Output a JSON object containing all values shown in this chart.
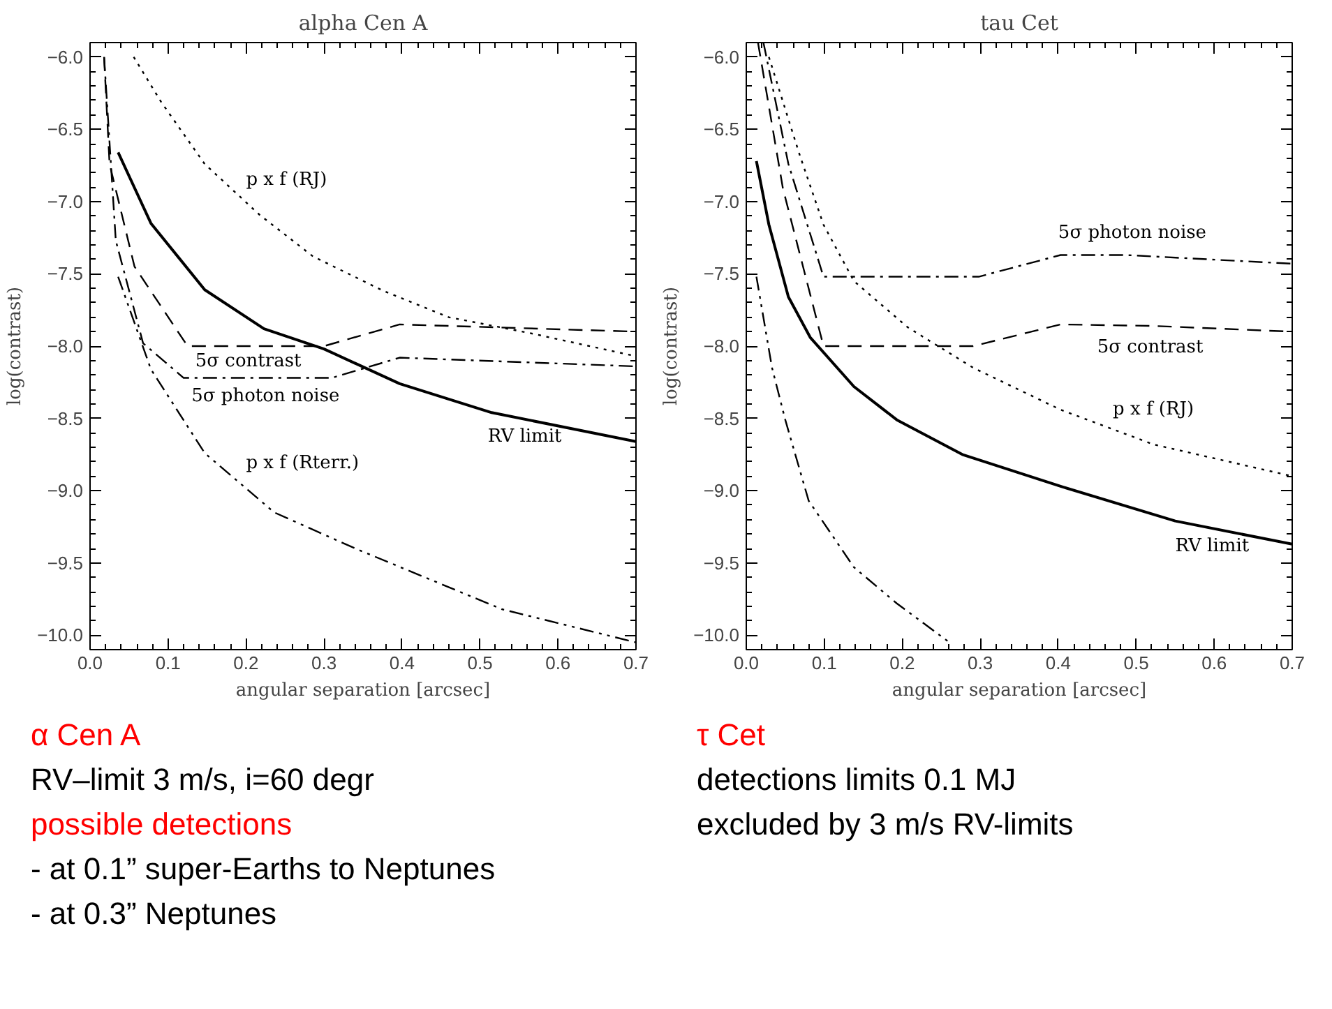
{
  "chart_data": [
    {
      "type": "line",
      "title": "alpha Cen A",
      "xlabel": "angular separation [arcsec]",
      "ylabel": "log(contrast)",
      "xlim": [
        0,
        0.7
      ],
      "ylim": [
        -10.1,
        -5.9
      ],
      "xticks": [
        {
          "value": 0,
          "label": "0.0"
        },
        {
          "value": 0.1,
          "label": "0.1"
        },
        {
          "value": 0.2,
          "label": "0.2"
        },
        {
          "value": 0.3,
          "label": "0.3"
        },
        {
          "value": 0.4,
          "label": "0.4"
        },
        {
          "value": 0.5,
          "label": "0.5"
        },
        {
          "value": 0.6,
          "label": "0.6"
        },
        {
          "value": 0.7,
          "label": "0.7"
        }
      ],
      "yticks": [
        {
          "value": -6,
          "label": "−6.0"
        },
        {
          "value": -6.5,
          "label": "−6.5"
        },
        {
          "value": -7,
          "label": "−7.0"
        },
        {
          "value": -7.5,
          "label": "−7.5"
        },
        {
          "value": -8,
          "label": "−8.0"
        },
        {
          "value": -8.5,
          "label": "−8.5"
        },
        {
          "value": -9,
          "label": "−9.0"
        },
        {
          "value": -9.5,
          "label": "−9.5"
        },
        {
          "value": -10,
          "label": "−10.0"
        }
      ],
      "series": [
        {
          "name": "RV limit",
          "color": "#000000",
          "line_style": "solid",
          "x": [
            0.036,
            0.078,
            0.147,
            0.223,
            0.3,
            0.397,
            0.515,
            0.7
          ],
          "values": [
            -6.66,
            -7.15,
            -7.61,
            -7.88,
            -8.02,
            -8.26,
            -8.46,
            -8.66
          ]
        },
        {
          "name": "p x f (RJ)",
          "color": "#000000",
          "line_style": "dotted",
          "x": [
            0.056,
            0.091,
            0.147,
            0.217,
            0.286,
            0.377,
            0.46,
            0.564,
            0.7
          ],
          "values": [
            -6.0,
            -6.31,
            -6.74,
            -7.09,
            -7.38,
            -7.62,
            -7.8,
            -7.91,
            -8.07
          ]
        },
        {
          "name": "5σ contrast",
          "color": "#000000",
          "line_style": "dashed",
          "x": [
            0.018,
            0.025,
            0.057,
            0.125,
            0.3,
            0.397,
            0.7
          ],
          "values": [
            -6.0,
            -6.74,
            -7.45,
            -8.0,
            -8.0,
            -7.85,
            -7.9
          ]
        },
        {
          "name": "5σ photon noise",
          "color": "#000000",
          "line_style": "dashdot",
          "x": [
            0.018,
            0.033,
            0.068,
            0.12,
            0.31,
            0.397,
            0.7
          ],
          "values": [
            -6.0,
            -7.27,
            -7.98,
            -8.22,
            -8.22,
            -8.08,
            -8.14
          ]
        },
        {
          "name": "p x f (Rterr.)",
          "color": "#000000",
          "line_style": "dashdotdot",
          "x": [
            0.036,
            0.078,
            0.147,
            0.236,
            0.34,
            0.528,
            0.7
          ],
          "values": [
            -7.52,
            -8.16,
            -8.74,
            -9.15,
            -9.4,
            -9.82,
            -10.05
          ]
        }
      ]
    },
    {
      "type": "line",
      "title": "tau Cet",
      "xlabel": "angular separation [arcsec]",
      "ylabel": "log(contrast)",
      "xlim": [
        0,
        0.7
      ],
      "ylim": [
        -10.1,
        -5.9
      ],
      "xticks": [
        {
          "value": 0,
          "label": "0.0"
        },
        {
          "value": 0.1,
          "label": "0.1"
        },
        {
          "value": 0.2,
          "label": "0.2"
        },
        {
          "value": 0.3,
          "label": "0.3"
        },
        {
          "value": 0.4,
          "label": "0.4"
        },
        {
          "value": 0.5,
          "label": "0.5"
        },
        {
          "value": 0.6,
          "label": "0.6"
        },
        {
          "value": 0.7,
          "label": "0.7"
        }
      ],
      "yticks": [
        {
          "value": -6,
          "label": "−6.0"
        },
        {
          "value": -6.5,
          "label": "−6.5"
        },
        {
          "value": -7,
          "label": "−7.0"
        },
        {
          "value": -7.5,
          "label": "−7.5"
        },
        {
          "value": -8,
          "label": "−8.0"
        },
        {
          "value": -8.5,
          "label": "−8.5"
        },
        {
          "value": -9,
          "label": "−9.0"
        },
        {
          "value": -9.5,
          "label": "−9.5"
        },
        {
          "value": -10,
          "label": "−10.0"
        }
      ],
      "series": [
        {
          "name": "RV limit",
          "color": "#000000",
          "line_style": "solid",
          "x": [
            0.013,
            0.029,
            0.054,
            0.082,
            0.138,
            0.193,
            0.277,
            0.403,
            0.55,
            0.7
          ],
          "values": [
            -6.72,
            -7.16,
            -7.66,
            -7.94,
            -8.28,
            -8.51,
            -8.75,
            -8.97,
            -9.21,
            -9.37
          ]
        },
        {
          "name": "5σ photon noise",
          "color": "#000000",
          "line_style": "dashdot",
          "x": [
            0.022,
            0.054,
            0.099,
            0.298,
            0.403,
            0.487,
            0.7
          ],
          "values": [
            -5.9,
            -6.74,
            -7.52,
            -7.52,
            -7.37,
            -7.37,
            -7.43
          ]
        },
        {
          "name": "5σ contrast",
          "color": "#000000",
          "line_style": "dashed",
          "x": [
            0.015,
            0.047,
            0.099,
            0.291,
            0.403,
            0.52,
            0.7
          ],
          "values": [
            -5.9,
            -6.91,
            -8.0,
            -8.0,
            -7.85,
            -7.86,
            -7.9
          ]
        },
        {
          "name": "p x f (RJ)",
          "color": "#000000",
          "line_style": "dotted",
          "x": [
            0.029,
            0.068,
            0.099,
            0.138,
            0.207,
            0.291,
            0.403,
            0.522,
            0.7
          ],
          "values": [
            -6.0,
            -6.67,
            -7.16,
            -7.55,
            -7.87,
            -8.15,
            -8.44,
            -8.68,
            -8.9
          ]
        },
        {
          "color": "#000000",
          "line_style": "dashdotdot",
          "x": [
            0.013,
            0.033,
            0.05,
            0.08,
            0.138,
            0.193,
            0.263
          ],
          "values": [
            -7.52,
            -8.15,
            -8.51,
            -9.07,
            -9.53,
            -9.78,
            -10.06
          ]
        }
      ]
    },
    {
      "type": "other",
      "title": "α Cen A",
      "annotations": [
        "RV–limit 3 m/s, i=60 degr"
      ]
    },
    {
      "type": "other",
      "title": "possible detections",
      "annotations": [
        "- at 0.1” super-Earths to Neptunes",
        "- at 0.3” Neptunes"
      ]
    },
    {
      "type": "other",
      "title": "τ Cet",
      "annotations": [
        "detections limits 0.1 MJ",
        "excluded by 3 m/s RV-limits"
      ]
    }
  ]
}
